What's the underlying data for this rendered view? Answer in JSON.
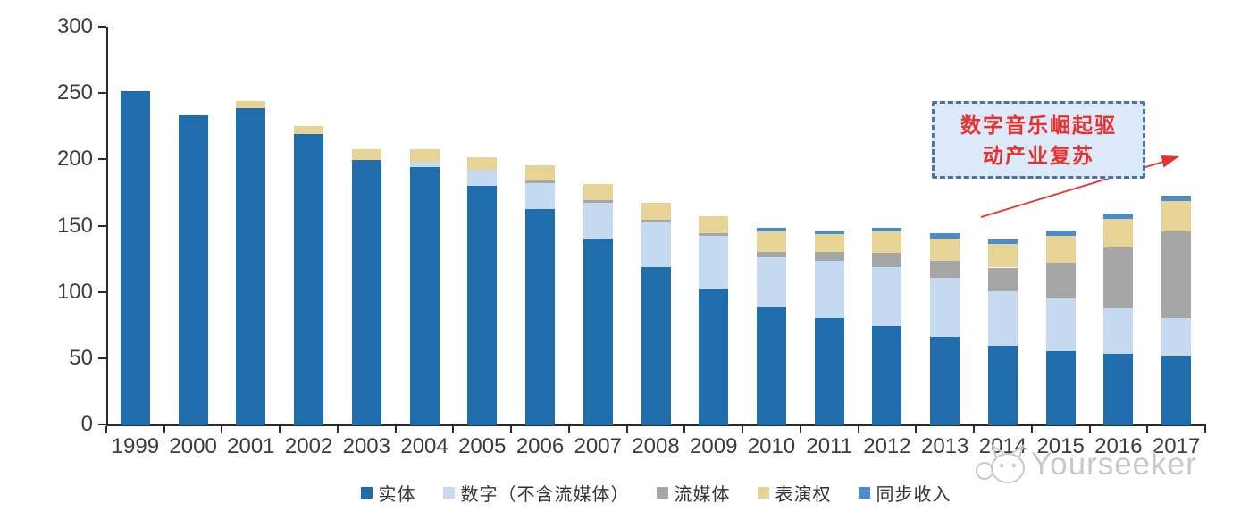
{
  "chart_data": {
    "type": "bar",
    "stacked": true,
    "title": "",
    "xlabel": "",
    "ylabel": "",
    "ylim": [
      0,
      300
    ],
    "yticks": [
      0,
      50,
      100,
      150,
      200,
      250,
      300
    ],
    "grid": false,
    "legend_position": "bottom",
    "categories": [
      "1999",
      "2000",
      "2001",
      "2002",
      "2003",
      "2004",
      "2005",
      "2006",
      "2007",
      "2008",
      "2009",
      "2010",
      "2011",
      "2012",
      "2013",
      "2014",
      "2015",
      "2016",
      "2017"
    ],
    "series": [
      {
        "key": "physical",
        "name": "实体",
        "color": "#1F6DAD",
        "values": [
          252,
          234,
          239,
          220,
          200,
          195,
          181,
          163,
          141,
          119,
          103,
          89,
          81,
          75,
          67,
          60,
          56,
          54,
          52
        ]
      },
      {
        "key": "digital-ex-streaming",
        "name": "数字（不含流媒体）",
        "color": "#C5D9F0",
        "values": [
          0,
          0,
          0,
          0,
          0,
          4,
          12,
          20,
          27,
          34,
          40,
          38,
          43,
          44,
          44,
          41,
          40,
          34,
          29
        ]
      },
      {
        "key": "streaming",
        "name": "流媒体",
        "color": "#A6A6A6",
        "values": [
          0,
          0,
          0,
          0,
          0,
          0,
          0,
          2,
          2,
          2,
          2,
          4,
          7,
          11,
          13,
          18,
          27,
          46,
          65
        ]
      },
      {
        "key": "performance-rights",
        "name": "表演权",
        "color": "#E7D494",
        "values": [
          0,
          0,
          6,
          6,
          8,
          9,
          9,
          11,
          12,
          13,
          13,
          15,
          13,
          16,
          17,
          18,
          20,
          22,
          23
        ]
      },
      {
        "key": "sync-revenue",
        "name": "同步收入",
        "color": "#4A8CCC",
        "values": [
          0,
          0,
          0,
          0,
          0,
          0,
          0,
          0,
          0,
          0,
          0,
          3,
          3,
          3,
          4,
          3,
          4,
          4,
          4
        ]
      }
    ]
  },
  "annotation": {
    "line1": "数字音乐崛起驱",
    "line2": "动产业复苏",
    "text_color": "#e8312f",
    "box_fill": "#dce9f8",
    "box_border": "#51719f",
    "arrow_color": "#e8312f"
  },
  "watermark": {
    "text": "Yourseeker",
    "color": "#c9c9c9"
  }
}
